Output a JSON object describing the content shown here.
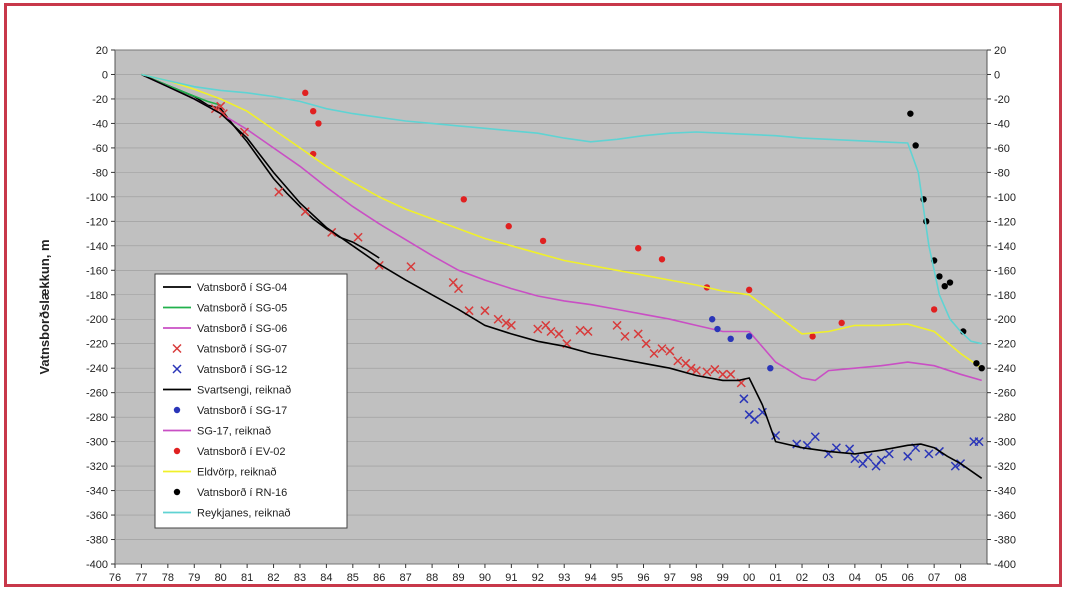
{
  "chart_data": {
    "type": "line",
    "ylabel": "Vatnsborðslækkun, m",
    "xlabel": "",
    "ylim": [
      -400,
      20
    ],
    "yticks": [
      20,
      0,
      -20,
      -40,
      -60,
      -80,
      -100,
      -120,
      -140,
      -160,
      -180,
      -200,
      -220,
      -240,
      -260,
      -280,
      -300,
      -320,
      -340,
      -360,
      -380,
      -400
    ],
    "xlim": [
      1976,
      2009
    ],
    "xticks": [
      1976,
      1977,
      1978,
      1979,
      1980,
      1981,
      1982,
      1983,
      1984,
      1985,
      1986,
      1987,
      1988,
      1989,
      1990,
      1991,
      1992,
      1993,
      1994,
      1995,
      1996,
      1997,
      1998,
      1999,
      2000,
      2001,
      2002,
      2003,
      2004,
      2005,
      2006,
      2007,
      2008
    ],
    "xtick_labels": [
      "76",
      "77",
      "78",
      "79",
      "80",
      "81",
      "82",
      "83",
      "84",
      "85",
      "86",
      "87",
      "88",
      "89",
      "90",
      "91",
      "92",
      "93",
      "94",
      "95",
      "96",
      "97",
      "98",
      "99",
      "00",
      "01",
      "02",
      "03",
      "04",
      "05",
      "06",
      "07",
      "08"
    ],
    "grid": true,
    "legend_position": "bottom-left",
    "colors": {
      "plot_bg": "#c0c0c0",
      "frame": "#c8384a",
      "sg04": "#000000",
      "sg05": "#22b14c",
      "sg06": "#c94fc4",
      "sg07": "#d83a3a",
      "sg12": "#2a35b8",
      "svartsengi": "#000000",
      "sg17": "#2a35b8",
      "sg17calc": "#c94fc4",
      "ev02": "#e02020",
      "eldvorp": "#f0f02a",
      "rn16": "#000000",
      "reykjanes": "#5fd3d3"
    },
    "series": [
      {
        "name": "Vatnsborð í SG-04",
        "kind": "line",
        "color_key": "sg04",
        "x": [
          1977.0,
          1978.0,
          1979.0,
          1979.5,
          1980.0,
          1980.5,
          1981.0,
          1981.5,
          1982.0,
          1982.5,
          1983.0,
          1983.5,
          1984.0,
          1984.5,
          1985.0,
          1985.5,
          1986.0
        ],
        "y": [
          0,
          -9,
          -18,
          -25,
          -28,
          -42,
          -55,
          -70,
          -85,
          -97,
          -108,
          -118,
          -126,
          -133,
          -137,
          -143,
          -150
        ]
      },
      {
        "name": "Vatnsborð í SG-05",
        "kind": "line",
        "color_key": "sg05",
        "x": [
          1977.0,
          1978.0,
          1978.8,
          1979.5,
          1980.0
        ],
        "y": [
          0,
          -9,
          -16,
          -22,
          -25
        ]
      },
      {
        "name": "Vatnsborð í SG-06",
        "kind": "line",
        "color_key": "sg06",
        "x": [
          1977.0,
          1978.0,
          1979.0,
          1980.0,
          1981.0,
          1982.0,
          1983.0,
          1984.0,
          1985.0,
          1986.0,
          1987.0,
          1988.0,
          1989.0,
          1990.0,
          1991.0,
          1992.0,
          1993.0,
          1994.0,
          1995.0,
          1996.0,
          1997.0,
          1998.0,
          1999.0,
          2000.0,
          2001.0,
          2002.0,
          2002.5,
          2003.0,
          2004.0,
          2005.0,
          2006.0,
          2007.0,
          2008.0,
          2008.8
        ],
        "y": [
          0,
          -10,
          -20,
          -32,
          -45,
          -60,
          -75,
          -92,
          -108,
          -122,
          -135,
          -148,
          -160,
          -168,
          -175,
          -181,
          -185,
          -188,
          -192,
          -196,
          -200,
          -205,
          -210,
          -210,
          -235,
          -248,
          -250,
          -242,
          -240,
          -238,
          -235,
          -238,
          -245,
          -250
        ]
      },
      {
        "name": "Vatnsborð í SG-07",
        "kind": "scatter",
        "marker": "x",
        "color_key": "sg07",
        "x": [
          1979.8,
          1980.0,
          1980.1,
          1980.9,
          1982.2,
          1983.2,
          1984.2,
          1985.2,
          1986.0,
          1987.2,
          1988.8,
          1989.0,
          1989.4,
          1990.0,
          1990.5,
          1990.8,
          1991.0,
          1992.0,
          1992.3,
          1992.5,
          1992.8,
          1993.1,
          1993.6,
          1993.9,
          1995.0,
          1995.3,
          1995.8,
          1996.1,
          1996.4,
          1996.7,
          1997.0,
          1997.3,
          1997.6,
          1997.8,
          1998.0,
          1998.4,
          1998.7,
          1999.0,
          1999.3,
          1999.7
        ],
        "y": [
          -28,
          -26,
          -32,
          -47,
          -96,
          -112,
          -129,
          -133,
          -156,
          -157,
          -170,
          -175,
          -193,
          -193,
          -200,
          -203,
          -205,
          -208,
          -205,
          -210,
          -212,
          -220,
          -209,
          -210,
          -205,
          -214,
          -212,
          -220,
          -228,
          -224,
          -226,
          -234,
          -236,
          -240,
          -242,
          -243,
          -241,
          -245,
          -245,
          -252
        ]
      },
      {
        "name": "Vatnsborð í SG-12",
        "kind": "scatter",
        "marker": "x",
        "color_key": "sg12",
        "x": [
          1999.8,
          2000.0,
          2000.2,
          2000.5,
          2001.0,
          2001.8,
          2002.2,
          2002.5,
          2003.0,
          2003.3,
          2003.8,
          2004.0,
          2004.3,
          2004.5,
          2004.8,
          2005.0,
          2005.3,
          2006.0,
          2006.3,
          2006.8,
          2007.2,
          2007.8,
          2008.0,
          2008.5,
          2008.7
        ],
        "y": [
          -265,
          -278,
          -282,
          -276,
          -295,
          -302,
          -303,
          -296,
          -310,
          -305,
          -306,
          -314,
          -318,
          -313,
          -320,
          -315,
          -310,
          -312,
          -305,
          -310,
          -308,
          -320,
          -318,
          -300,
          -300
        ]
      },
      {
        "name": "Svartsengi, reiknað",
        "kind": "line",
        "color_key": "svartsengi",
        "x": [
          1977.0,
          1978.0,
          1979.0,
          1980.0,
          1981.0,
          1982.0,
          1983.0,
          1984.0,
          1985.0,
          1986.0,
          1987.0,
          1988.0,
          1989.0,
          1990.0,
          1991.0,
          1992.0,
          1993.0,
          1994.0,
          1995.0,
          1996.0,
          1997.0,
          1998.0,
          1999.0,
          1999.6,
          2000.0,
          2000.5,
          2001.0,
          2002.0,
          2003.0,
          2004.0,
          2005.0,
          2006.0,
          2006.5,
          2007.0,
          2007.5,
          2008.0,
          2008.8
        ],
        "y": [
          0,
          -10,
          -20,
          -32,
          -52,
          -80,
          -105,
          -125,
          -140,
          -155,
          -168,
          -180,
          -192,
          -205,
          -212,
          -218,
          -222,
          -228,
          -232,
          -236,
          -240,
          -246,
          -250,
          -250,
          -248,
          -270,
          -300,
          -305,
          -308,
          -310,
          -307,
          -303,
          -302,
          -305,
          -312,
          -318,
          -330
        ]
      },
      {
        "name": "Vatnsborð í SG-17",
        "kind": "scatter",
        "marker": "o",
        "color_key": "sg17",
        "x": [
          1998.6,
          1998.8,
          1999.3,
          2000.0,
          2000.8
        ],
        "y": [
          -200,
          -208,
          -216,
          -214,
          -240
        ]
      },
      {
        "name": "SG-17, reiknað",
        "kind": "line",
        "color_key": "sg17calc",
        "x": [],
        "y": []
      },
      {
        "name": "Vatnsborð í EV-02",
        "kind": "scatter",
        "marker": "o",
        "color_key": "ev02",
        "x": [
          1983.2,
          1983.5,
          1983.7,
          1983.5,
          1989.2,
          1990.9,
          1992.2,
          1995.8,
          1996.7,
          1998.4,
          2000.0,
          2002.4,
          2003.5,
          2007.0
        ],
        "y": [
          -15,
          -30,
          -40,
          -65,
          -102,
          -124,
          -136,
          -142,
          -151,
          -174,
          -176,
          -214,
          -203,
          -192
        ]
      },
      {
        "name": "Eldvörp, reiknað",
        "kind": "line",
        "color_key": "eldvorp",
        "x": [
          1977.0,
          1978.0,
          1979.0,
          1980.0,
          1981.0,
          1982.0,
          1983.0,
          1984.0,
          1985.0,
          1986.0,
          1987.0,
          1988.0,
          1989.0,
          1990.0,
          1991.0,
          1992.0,
          1993.0,
          1994.0,
          1995.0,
          1996.0,
          1997.0,
          1998.0,
          1999.0,
          2000.0,
          2001.0,
          2002.0,
          2003.0,
          2004.0,
          2005.0,
          2006.0,
          2007.0,
          2008.0,
          2008.8
        ],
        "y": [
          0,
          -5,
          -12,
          -20,
          -30,
          -45,
          -60,
          -75,
          -88,
          -100,
          -110,
          -118,
          -126,
          -134,
          -140,
          -146,
          -152,
          -156,
          -160,
          -164,
          -168,
          -172,
          -177,
          -180,
          -196,
          -212,
          -210,
          -205,
          -205,
          -204,
          -210,
          -228,
          -240
        ]
      },
      {
        "name": "Vatnsborð í RN-16",
        "kind": "scatter",
        "marker": "o",
        "color_key": "rn16",
        "x": [
          2006.1,
          2006.3,
          2006.6,
          2006.7,
          2007.0,
          2007.2,
          2007.4,
          2007.6,
          2008.1,
          2008.6,
          2008.8
        ],
        "y": [
          -32,
          -58,
          -102,
          -120,
          -152,
          -165,
          -173,
          -170,
          -210,
          -236,
          -240
        ]
      },
      {
        "name": "Reykjanes, reiknað",
        "kind": "line",
        "color_key": "reykjanes",
        "x": [
          1977.0,
          1978.0,
          1979.0,
          1980.0,
          1981.0,
          1982.0,
          1983.0,
          1984.0,
          1985.0,
          1986.0,
          1987.0,
          1988.0,
          1989.0,
          1990.0,
          1991.0,
          1992.0,
          1993.0,
          1994.0,
          1995.0,
          1996.0,
          1997.0,
          1998.0,
          1999.0,
          2000.0,
          2001.0,
          2002.0,
          2003.0,
          2004.0,
          2005.0,
          2006.0,
          2006.4,
          2006.8,
          2007.2,
          2007.6,
          2008.0,
          2008.4,
          2008.8
        ],
        "y": [
          0,
          -5,
          -10,
          -13,
          -15,
          -18,
          -22,
          -28,
          -32,
          -35,
          -38,
          -40,
          -42,
          -44,
          -46,
          -48,
          -52,
          -55,
          -53,
          -50,
          -48,
          -47,
          -48,
          -49,
          -50,
          -52,
          -53,
          -54,
          -55,
          -56,
          -80,
          -140,
          -180,
          -200,
          -210,
          -218,
          -220
        ]
      }
    ]
  }
}
